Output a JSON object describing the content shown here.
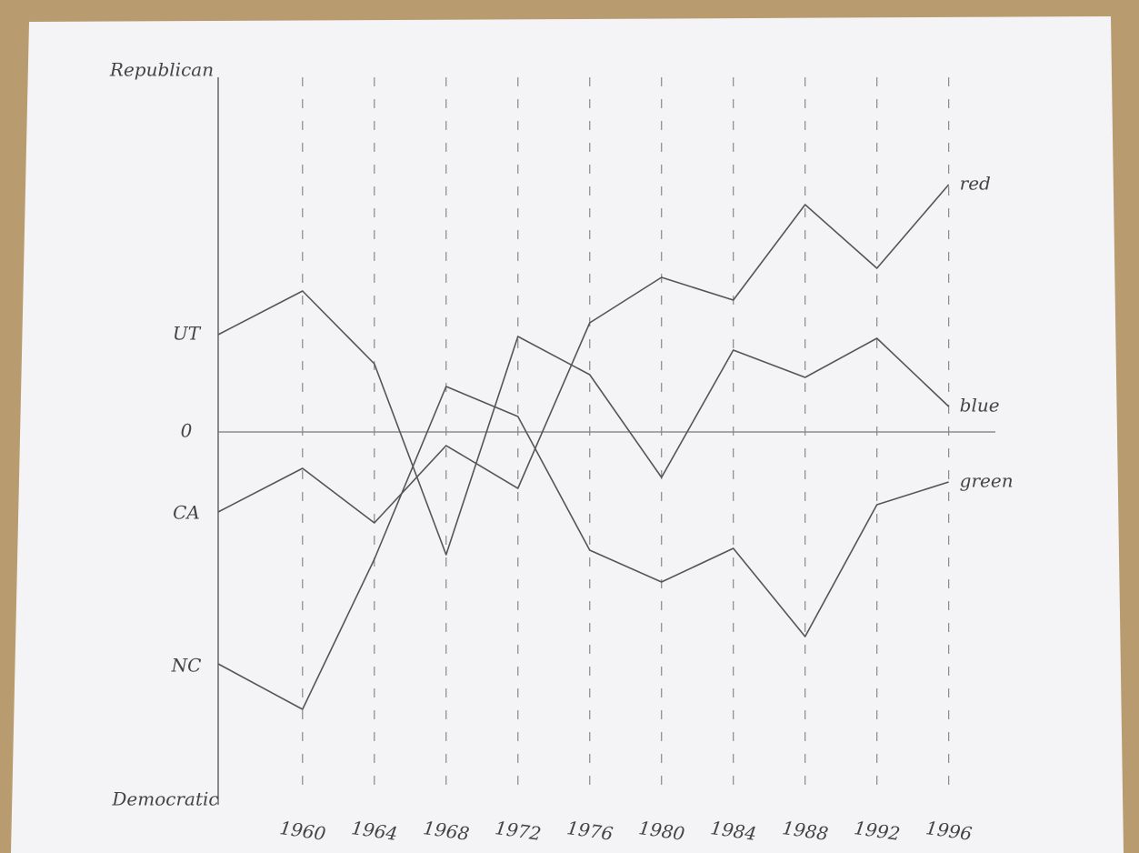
{
  "chart_data": {
    "type": "line",
    "y_top_label": "Republican",
    "y_bottom_label": "Democratic",
    "x": [
      1955.3,
      1960,
      1964,
      1968,
      1972,
      1976,
      1980,
      1984,
      1988,
      1992,
      1996
    ],
    "xlim": [
      1955.3,
      1998.6
    ],
    "xticks": [
      1960,
      1964,
      1968,
      1972,
      1976,
      1980,
      1984,
      1988,
      1992,
      1996
    ],
    "ylim": [
      -41,
      39
    ],
    "yticks": [
      {
        "value": 10.7,
        "label": "UT"
      },
      0,
      {
        "value": -9,
        "label": "CA"
      },
      {
        "value": -25.8,
        "label": "NC"
      }
    ],
    "grid": true,
    "series": [
      {
        "name": "red",
        "color": "#555555",
        "values": [
          -8.8,
          -4,
          -10,
          -1.5,
          -6.2,
          12,
          17,
          14.5,
          25,
          18,
          27.2
        ]
      },
      {
        "name": "blue",
        "color": "#555555",
        "values": [
          10.7,
          15.5,
          7.5,
          -13.5,
          10.5,
          6.3,
          -5,
          9,
          6,
          10.3,
          2.8
        ]
      },
      {
        "name": "green",
        "color": "#555555",
        "values": [
          -25.5,
          -30.5,
          -14,
          5,
          1.7,
          -13,
          -16.5,
          -12.8,
          -22.5,
          -8,
          -5.5
        ]
      }
    ]
  }
}
